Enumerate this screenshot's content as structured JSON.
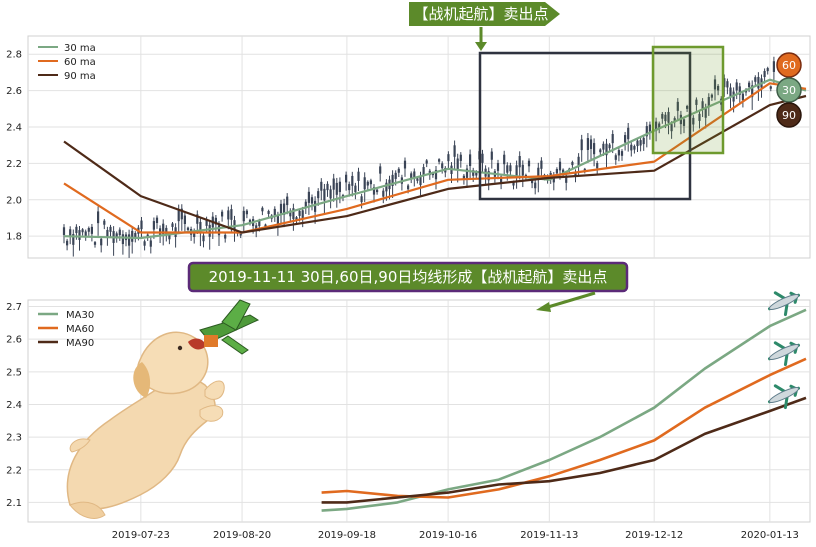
{
  "top_panel": {
    "banner": "【战机起航】卖出点",
    "yticks": [
      "2.8",
      "2.6",
      "2.4",
      "2.2",
      "2.0",
      "1.8"
    ],
    "legend": [
      "30 ma",
      "60 ma",
      "90 ma"
    ],
    "badges": [
      "60",
      "30",
      "90"
    ]
  },
  "bottom_panel": {
    "banner": "2019-11-11 30日,60日,90日均线形成【战机起航】卖出点",
    "yticks": [
      "2.7",
      "2.6",
      "2.5",
      "2.4",
      "2.3",
      "2.2",
      "2.1"
    ],
    "legend": [
      "MA30",
      "MA60",
      "MA90"
    ],
    "xticks": [
      "2019-07-23",
      "2019-08-20",
      "2019-09-18",
      "2019-10-16",
      "2019-11-13",
      "2019-12-12",
      "2020-01-13"
    ]
  },
  "colors": {
    "ma30": "#7ba883",
    "ma60": "#e06a1f",
    "ma90": "#4e2a18",
    "candle": "#3a4456",
    "banner_green": "#5c8a2a",
    "box_dark": "#2f3340",
    "box_green": "#6e9a2e"
  },
  "chart_data": [
    {
      "type": "line",
      "title": "",
      "ylim": [
        1.68,
        2.9
      ],
      "x": [
        "2019-06-24",
        "2019-07-23",
        "2019-08-20",
        "2019-09-18",
        "2019-10-16",
        "2019-11-13",
        "2019-12-12",
        "2020-01-13",
        "2020-01-23"
      ],
      "series": [
        {
          "name": "30 ma",
          "values": [
            1.8,
            1.79,
            1.86,
            2.02,
            2.17,
            2.11,
            2.38,
            2.66,
            2.6
          ]
        },
        {
          "name": "60 ma",
          "values": [
            2.09,
            1.82,
            1.82,
            1.95,
            2.11,
            2.13,
            2.21,
            2.64,
            2.61
          ]
        },
        {
          "name": "90 ma",
          "values": [
            2.32,
            2.02,
            1.82,
            1.91,
            2.06,
            2.12,
            2.16,
            2.52,
            2.57
          ]
        }
      ]
    },
    {
      "type": "line",
      "title": "",
      "ylim": [
        2.04,
        2.72
      ],
      "x": [
        "2019-09-11",
        "2019-09-18",
        "2019-10-02",
        "2019-10-16",
        "2019-10-30",
        "2019-11-13",
        "2019-11-27",
        "2019-12-12",
        "2019-12-26",
        "2020-01-13",
        "2020-01-23"
      ],
      "series": [
        {
          "name": "MA30",
          "values": [
            2.075,
            2.08,
            2.1,
            2.14,
            2.17,
            2.23,
            2.3,
            2.39,
            2.51,
            2.64,
            2.69
          ]
        },
        {
          "name": "MA60",
          "values": [
            2.13,
            2.135,
            2.12,
            2.115,
            2.14,
            2.18,
            2.23,
            2.29,
            2.39,
            2.49,
            2.54
          ]
        },
        {
          "name": "MA90",
          "values": [
            2.1,
            2.1,
            2.115,
            2.13,
            2.155,
            2.165,
            2.19,
            2.23,
            2.31,
            2.38,
            2.42
          ]
        }
      ]
    }
  ]
}
